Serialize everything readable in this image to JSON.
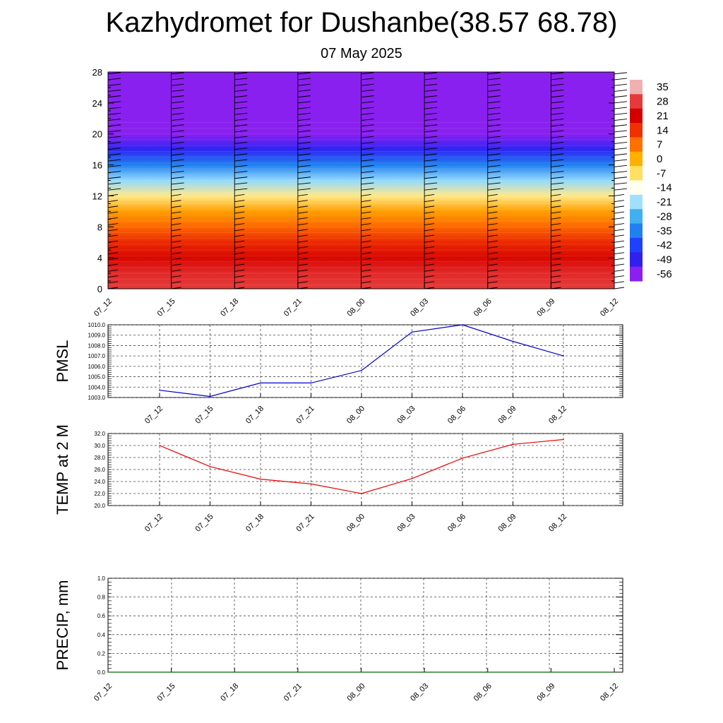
{
  "title": "Kazhydromet for Dushanbe(38.57 68.78)",
  "subtitle": "07 May 2025",
  "time_labels": [
    "07_12",
    "07_15",
    "07_18",
    "07_21",
    "08_00",
    "08_03",
    "08_06",
    "08_09",
    "08_12"
  ],
  "chart_data": [
    {
      "type": "heatmap",
      "title": "Kazhydromet for Dushanbe(38.57 68.78)",
      "subtitle": "07 May 2025",
      "x": [
        "07_12",
        "07_15",
        "07_18",
        "07_21",
        "08_00",
        "08_03",
        "08_06",
        "08_09",
        "08_12"
      ],
      "yticks": [
        0,
        4,
        8,
        12,
        16,
        20,
        24,
        28
      ],
      "ylim": [
        0,
        28
      ],
      "colorbar": {
        "labels": [
          35,
          28,
          21,
          14,
          7,
          0,
          -7,
          -14,
          -21,
          -28,
          -35,
          -42,
          -49,
          -56
        ],
        "colors": [
          "#f0b0b0",
          "#e63a3a",
          "#d40000",
          "#f03000",
          "#ff7000",
          "#ffb000",
          "#ffe060",
          "#fffff0",
          "#a0e0ff",
          "#40b0f0",
          "#2080f0",
          "#2040ff",
          "#3020f0",
          "#8a20f0"
        ]
      },
      "approx_levels": [
        {
          "level": 0,
          "value": 28
        },
        {
          "level": 2,
          "value": 26
        },
        {
          "level": 4,
          "value": 20
        },
        {
          "level": 6,
          "value": 15
        },
        {
          "level": 8,
          "value": 8
        },
        {
          "level": 10,
          "value": 2
        },
        {
          "level": 12,
          "value": -9
        },
        {
          "level": 14,
          "value": -22
        },
        {
          "level": 16,
          "value": -35
        },
        {
          "level": 18,
          "value": -48
        },
        {
          "level": 20,
          "value": -56
        },
        {
          "level": 22,
          "value": -62
        },
        {
          "level": 28,
          "value": -63
        }
      ],
      "overlay": "wind barbs"
    },
    {
      "type": "line",
      "ylabel": "PMSL",
      "x": [
        "07_12",
        "07_15",
        "07_18",
        "07_21",
        "08_00",
        "08_03",
        "08_06",
        "08_09",
        "08_12"
      ],
      "series": [
        {
          "values": [
            1003.7,
            1003.1,
            1004.4,
            1004.4,
            1005.6,
            1009.3,
            1010.0,
            1008.4,
            1007.0
          ]
        }
      ],
      "ylim": [
        1003.0,
        1010.0
      ],
      "yticks": [
        "1003.0",
        "1004.0",
        "1005.0",
        "1006.0",
        "1007.0",
        "1008.0",
        "1009.0",
        "1010.0"
      ],
      "grid": true
    },
    {
      "type": "line",
      "ylabel": "TEMP at 2 M",
      "x": [
        "07_12",
        "07_15",
        "07_18",
        "07_21",
        "08_00",
        "08_03",
        "08_06",
        "08_09",
        "08_12"
      ],
      "series": [
        {
          "values": [
            30.0,
            26.5,
            24.4,
            23.6,
            22.0,
            24.5,
            27.9,
            30.2,
            31.0
          ]
        }
      ],
      "ylim": [
        20.0,
        32.0
      ],
      "yticks": [
        "20.0",
        "22.0",
        "24.0",
        "26.0",
        "28.0",
        "30.0",
        "32.0"
      ],
      "grid": true
    },
    {
      "type": "line",
      "ylabel": "PRECIP, mm",
      "x": [
        "07_12",
        "07_15",
        "07_18",
        "07_21",
        "08_00",
        "08_03",
        "08_06",
        "08_09",
        "08_12"
      ],
      "series": [
        {
          "values": [
            0,
            0,
            0,
            0,
            0,
            0,
            0,
            0,
            0
          ]
        }
      ],
      "ylim": [
        0.0,
        1.0
      ],
      "yticks": [
        "0.0",
        "0.2",
        "0.4",
        "0.6",
        "0.8",
        "1.0"
      ],
      "grid": true
    }
  ],
  "colors": {
    "pmsl_line": "#0000cc",
    "temp_line": "#ee0000",
    "precip_line": "#006600",
    "grid": "#444444"
  }
}
